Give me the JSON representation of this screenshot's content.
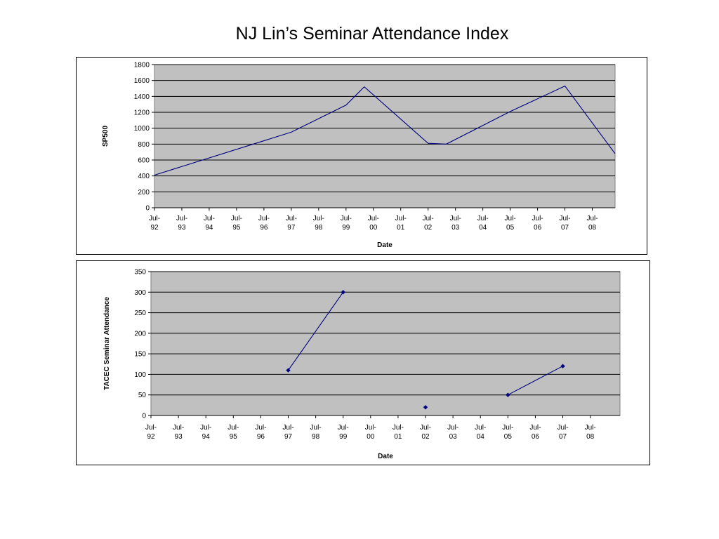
{
  "page": {
    "title": "NJ Lin’s Seminar Attendance Index"
  },
  "colors": {
    "plot_bg": "#c0c0c0",
    "series": "#000080",
    "gridline": "#000000"
  },
  "chart_data": [
    {
      "type": "line",
      "xlabel": "Date",
      "ylabel": "SP500",
      "ylim": [
        0,
        1800
      ],
      "yticks": [
        0,
        200,
        400,
        600,
        800,
        1000,
        1200,
        1400,
        1600,
        1800
      ],
      "xlim": [
        "1992-07",
        "2009-05"
      ],
      "xticks": [
        {
          "date": "1992-07",
          "line1": "Jul-",
          "line2": "92"
        },
        {
          "date": "1993-07",
          "line1": "Jul-",
          "line2": "93"
        },
        {
          "date": "1994-07",
          "line1": "Jul-",
          "line2": "94"
        },
        {
          "date": "1995-07",
          "line1": "Jul-",
          "line2": "95"
        },
        {
          "date": "1996-07",
          "line1": "Jul-",
          "line2": "96"
        },
        {
          "date": "1997-07",
          "line1": "Jul-",
          "line2": "97"
        },
        {
          "date": "1998-07",
          "line1": "Jul-",
          "line2": "98"
        },
        {
          "date": "1999-07",
          "line1": "Jul-",
          "line2": "99"
        },
        {
          "date": "2000-07",
          "line1": "Jul-",
          "line2": "00"
        },
        {
          "date": "2001-07",
          "line1": "Jul-",
          "line2": "01"
        },
        {
          "date": "2002-07",
          "line1": "Jul-",
          "line2": "02"
        },
        {
          "date": "2003-07",
          "line1": "Jul-",
          "line2": "03"
        },
        {
          "date": "2004-07",
          "line1": "Jul-",
          "line2": "04"
        },
        {
          "date": "2005-07",
          "line1": "Jul-",
          "line2": "05"
        },
        {
          "date": "2006-07",
          "line1": "Jul-",
          "line2": "06"
        },
        {
          "date": "2007-07",
          "line1": "Jul-",
          "line2": "07"
        },
        {
          "date": "2008-07",
          "line1": "Jul-",
          "line2": "08"
        }
      ],
      "grid": true,
      "series": [
        {
          "markers": false,
          "points": [
            {
              "x": "1992-07",
              "y": 410
            },
            {
              "x": "1997-07",
              "y": 950
            },
            {
              "x": "1999-07",
              "y": 1290
            },
            {
              "x": "2000-03",
              "y": 1520
            },
            {
              "x": "2002-07",
              "y": 810
            },
            {
              "x": "2003-03",
              "y": 800
            },
            {
              "x": "2005-07",
              "y": 1210
            },
            {
              "x": "2007-07",
              "y": 1530
            },
            {
              "x": "2009-05",
              "y": 680
            }
          ]
        }
      ]
    },
    {
      "type": "line",
      "xlabel": "Date",
      "ylabel": "TACEC Seminar Attendance",
      "ylim": [
        0,
        350
      ],
      "yticks": [
        0,
        50,
        100,
        150,
        200,
        250,
        300,
        350
      ],
      "xlim": [
        "1992-07",
        "2009-08"
      ],
      "xticks": [
        {
          "date": "1992-07",
          "line1": "Jul-",
          "line2": "92"
        },
        {
          "date": "1993-07",
          "line1": "Jul-",
          "line2": "93"
        },
        {
          "date": "1994-07",
          "line1": "Jul-",
          "line2": "94"
        },
        {
          "date": "1995-07",
          "line1": "Jul-",
          "line2": "95"
        },
        {
          "date": "1996-07",
          "line1": "Jul-",
          "line2": "96"
        },
        {
          "date": "1997-07",
          "line1": "Jul-",
          "line2": "97"
        },
        {
          "date": "1998-07",
          "line1": "Jul-",
          "line2": "98"
        },
        {
          "date": "1999-07",
          "line1": "Jul-",
          "line2": "99"
        },
        {
          "date": "2000-07",
          "line1": "Jul-",
          "line2": "00"
        },
        {
          "date": "2001-07",
          "line1": "Jul-",
          "line2": "01"
        },
        {
          "date": "2002-07",
          "line1": "Jul-",
          "line2": "02"
        },
        {
          "date": "2003-07",
          "line1": "Jul-",
          "line2": "03"
        },
        {
          "date": "2004-07",
          "line1": "Jul-",
          "line2": "04"
        },
        {
          "date": "2005-07",
          "line1": "Jul-",
          "line2": "05"
        },
        {
          "date": "2006-07",
          "line1": "Jul-",
          "line2": "06"
        },
        {
          "date": "2007-07",
          "line1": "Jul-",
          "line2": "07"
        },
        {
          "date": "2008-07",
          "line1": "Jul-",
          "line2": "08"
        }
      ],
      "grid": true,
      "series": [
        {
          "markers": true,
          "segments": [
            [
              {
                "x": "1997-07",
                "y": 110
              },
              {
                "x": "1999-07",
                "y": 300
              }
            ],
            [
              {
                "x": "2002-07",
                "y": 20
              }
            ],
            [
              {
                "x": "2005-07",
                "y": 50
              },
              {
                "x": "2007-07",
                "y": 120
              }
            ]
          ]
        }
      ]
    }
  ]
}
